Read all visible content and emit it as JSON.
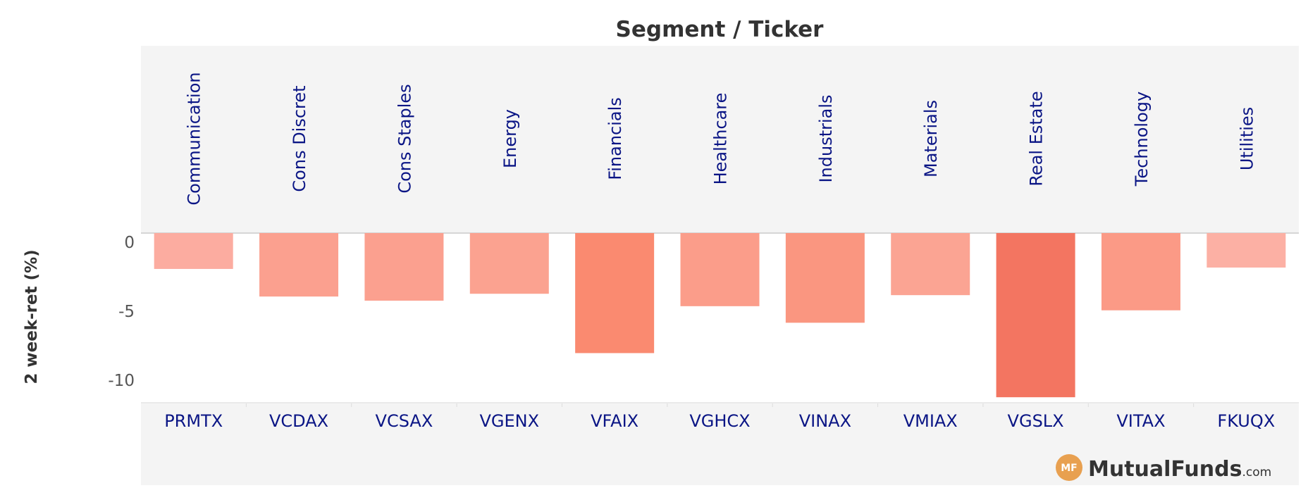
{
  "chart_data": {
    "type": "bar",
    "title": "Segment / Ticker",
    "ylabel": "2 week-ret (%)",
    "xlabel": "",
    "ylim": [
      -12.3,
      0
    ],
    "yticks": [
      0,
      -5,
      -10
    ],
    "segments": [
      "Communication",
      "Cons Discret",
      "Cons Staples",
      "Energy",
      "Financials",
      "Healthcare",
      "Industrials",
      "Materials",
      "Real Estate",
      "Technology",
      "Utilities"
    ],
    "categories": [
      "PRMTX",
      "VCDAX",
      "VCSAX",
      "VGENX",
      "VFAIX",
      "VGHCX",
      "VINAX",
      "VMIAX",
      "VGSLX",
      "VITAX",
      "FKUQX"
    ],
    "values": [
      -2.6,
      -4.6,
      -4.9,
      -4.4,
      -8.7,
      -5.3,
      -6.5,
      -4.5,
      -11.9,
      -5.6,
      -2.5
    ],
    "colors": [
      "#fcaca0",
      "#fba08f",
      "#fba08f",
      "#fba290",
      "#fa8a70",
      "#fb9d8a",
      "#fa9680",
      "#fba493",
      "#f37561",
      "#fb9a86",
      "#fcb0a4"
    ],
    "grid": false,
    "legend": "none"
  },
  "branding": {
    "logo_mark": "MF",
    "logo_name": "MutualFunds",
    "logo_suffix": ".com",
    "logo_color": "#e8a050"
  }
}
